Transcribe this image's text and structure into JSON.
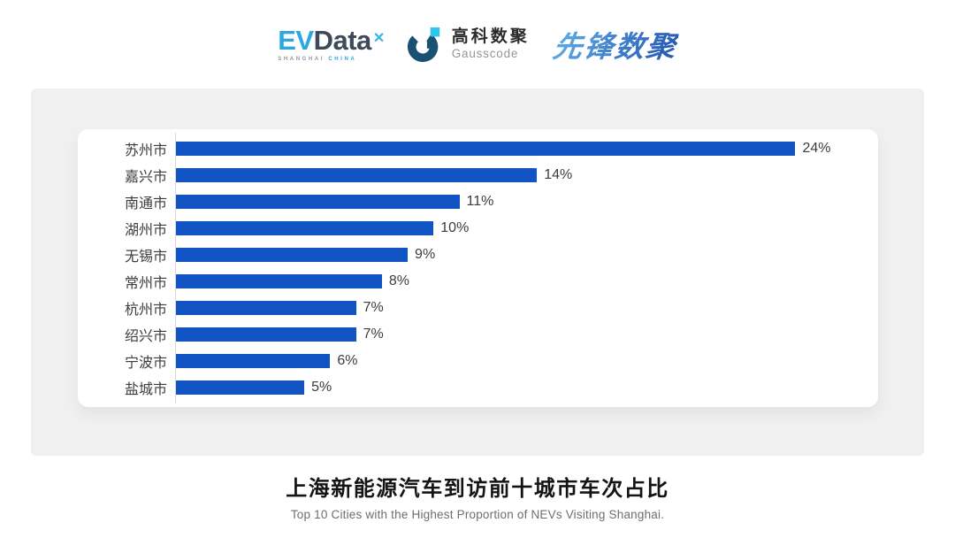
{
  "header": {
    "evdata": {
      "ev": "EV",
      "data": "Data",
      "mark": "✕",
      "sub_shanghai": "SHANGHAI",
      "sub_china": "CHINA"
    },
    "gausscode": {
      "name_cn": "高科数聚",
      "name_en": "Gausscode"
    },
    "pioneer": {
      "name": "先锋数聚"
    }
  },
  "chart_data": {
    "type": "bar",
    "orientation": "horizontal",
    "title": "上海新能源汽车到访前十城市车次占比",
    "subtitle": "Top 10 Cities with the Highest Proportion of  NEVs Visiting Shanghai.",
    "categories": [
      "苏州市",
      "嘉兴市",
      "南通市",
      "湖州市",
      "无锡市",
      "常州市",
      "杭州市",
      "绍兴市",
      "宁波市",
      "盐城市"
    ],
    "values": [
      24,
      14,
      11,
      10,
      9,
      8,
      7,
      7,
      6,
      5
    ],
    "value_labels": [
      "24%",
      "14%",
      "11%",
      "10%",
      "9%",
      "8%",
      "7%",
      "7%",
      "6%",
      "5%"
    ],
    "unit": "%",
    "xlim": [
      0,
      27.2
    ],
    "grid": false,
    "legend": false,
    "value_labels_position": "end",
    "bar_color": "#1254c4",
    "axis_color": "#d8d8d8"
  },
  "footer": {
    "title": "上海新能源汽车到访前十城市车次占比",
    "subtitle": "Top 10 Cities with the Highest Proportion of  NEVs Visiting Shanghai."
  },
  "colors": {
    "panel_bg": "#f0f0f0",
    "card_bg": "#ffffff",
    "bar": "#1254c4",
    "label_text": "#3c3c3c",
    "title_text": "#141414",
    "subtitle_text": "#6e6e6e",
    "evdata_cyan": "#29a9e0",
    "evdata_slate": "#3e4a59",
    "gauss_dark": "#1a5173",
    "gauss_cyan": "#2cc5ec"
  }
}
